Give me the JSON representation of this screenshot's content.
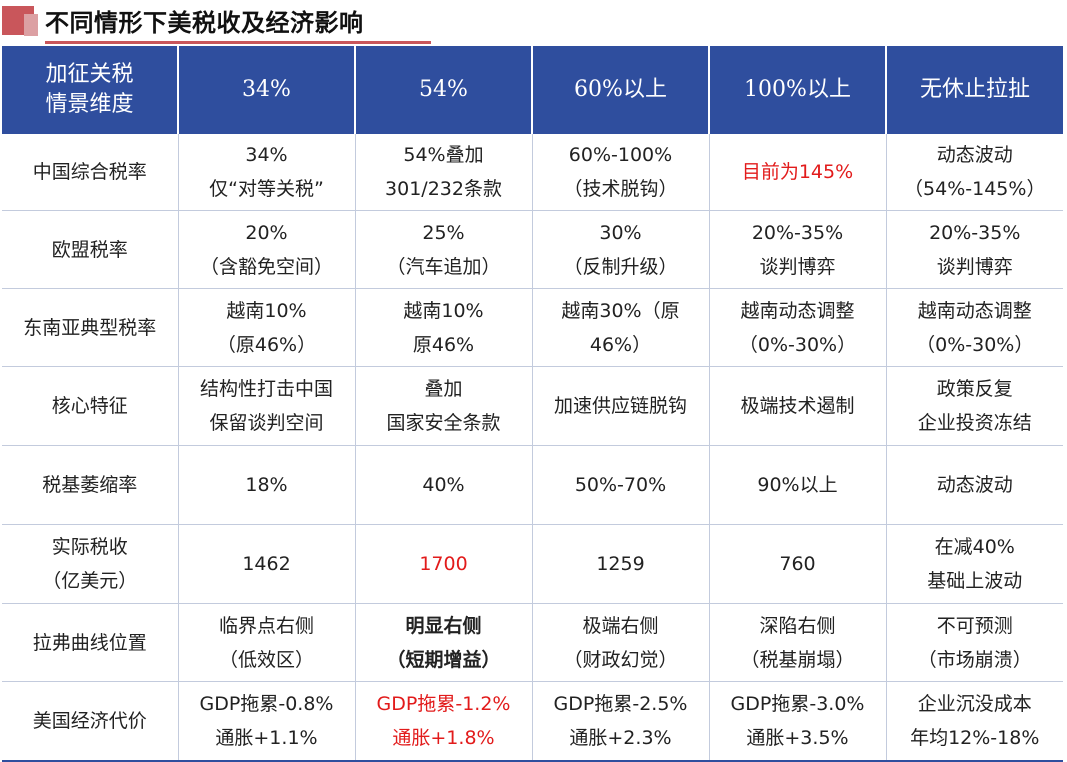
{
  "title": "不同情形下美税收及经济影响",
  "header": {
    "corner": [
      "加征关税",
      "情景维度"
    ],
    "columns": [
      "34%",
      "54%",
      "60%以上",
      "100%以上",
      "无休止拉扯"
    ]
  },
  "rows": [
    {
      "label": [
        "中国综合税率"
      ],
      "cells": [
        {
          "lines": [
            "34%",
            "仅“对等关税”"
          ]
        },
        {
          "lines": [
            "54%叠加",
            "301/232条款"
          ]
        },
        {
          "lines": [
            "60%-100%",
            "（技术脱钩）"
          ]
        },
        {
          "lines": [
            "目前为145%"
          ],
          "red": true
        },
        {
          "lines": [
            "动态波动",
            "（54%-145%）"
          ]
        }
      ]
    },
    {
      "label": [
        "欧盟税率"
      ],
      "cells": [
        {
          "lines": [
            "20%",
            "（含豁免空间）"
          ]
        },
        {
          "lines": [
            "25%",
            "（汽车追加）"
          ]
        },
        {
          "lines": [
            "30%",
            "（反制升级）"
          ]
        },
        {
          "lines": [
            "20%-35%",
            "谈判博弈"
          ]
        },
        {
          "lines": [
            "20%-35%",
            "谈判博弈"
          ]
        }
      ]
    },
    {
      "label": [
        "东南亚典型税率"
      ],
      "cells": [
        {
          "lines": [
            "越南10%",
            "（原46%）"
          ]
        },
        {
          "lines": [
            "越南10%",
            "原46%"
          ]
        },
        {
          "lines": [
            "越南30%（原",
            "46%）"
          ]
        },
        {
          "lines": [
            "越南动态调整",
            "（0%-30%）"
          ]
        },
        {
          "lines": [
            "越南动态调整",
            "（0%-30%）"
          ]
        }
      ]
    },
    {
      "label": [
        "核心特征"
      ],
      "cells": [
        {
          "lines": [
            "结构性打击中国",
            "保留谈判空间"
          ]
        },
        {
          "lines": [
            "叠加",
            "国家安全条款"
          ]
        },
        {
          "lines": [
            "加速供应链脱钩"
          ]
        },
        {
          "lines": [
            "极端技术遏制"
          ]
        },
        {
          "lines": [
            "政策反复",
            "企业投资冻结"
          ]
        }
      ]
    },
    {
      "label": [
        "税基萎缩率"
      ],
      "cells": [
        {
          "lines": [
            "18%"
          ]
        },
        {
          "lines": [
            "40%"
          ]
        },
        {
          "lines": [
            "50%-70%"
          ]
        },
        {
          "lines": [
            "90%以上"
          ]
        },
        {
          "lines": [
            "动态波动"
          ]
        }
      ]
    },
    {
      "label": [
        "实际税收",
        "（亿美元）"
      ],
      "cells": [
        {
          "lines": [
            "1462"
          ]
        },
        {
          "lines": [
            "1700"
          ],
          "red": true
        },
        {
          "lines": [
            "1259"
          ]
        },
        {
          "lines": [
            "760"
          ]
        },
        {
          "lines": [
            "在减40%",
            "基础上波动"
          ]
        }
      ]
    },
    {
      "label": [
        "拉弗曲线位置"
      ],
      "cells": [
        {
          "lines": [
            "临界点右侧",
            "（低效区）"
          ]
        },
        {
          "lines": [
            "明显右侧",
            "（短期增益）"
          ],
          "bold": true
        },
        {
          "lines": [
            "极端右侧",
            "（财政幻觉）"
          ]
        },
        {
          "lines": [
            "深陷右侧",
            "（税基崩塌）"
          ]
        },
        {
          "lines": [
            "不可预测",
            "（市场崩溃）"
          ]
        }
      ]
    },
    {
      "label": [
        "美国经济代价"
      ],
      "cells": [
        {
          "lines": [
            "GDP拖累-0.8%",
            "通胀+1.1%"
          ]
        },
        {
          "lines": [
            "GDP拖累-1.2%",
            "通胀+1.8%"
          ],
          "red": true
        },
        {
          "lines": [
            "GDP拖累-2.5%",
            "通胀+2.3%"
          ]
        },
        {
          "lines": [
            "GDP拖累-3.0%",
            "通胀+3.5%"
          ]
        },
        {
          "lines": [
            "企业沉没成本",
            "年均12%-18%"
          ]
        }
      ]
    }
  ],
  "colors": {
    "header_bg": "#2f4e9e",
    "accent_red": "#e21b1b",
    "title_marker": "#c9565b"
  }
}
